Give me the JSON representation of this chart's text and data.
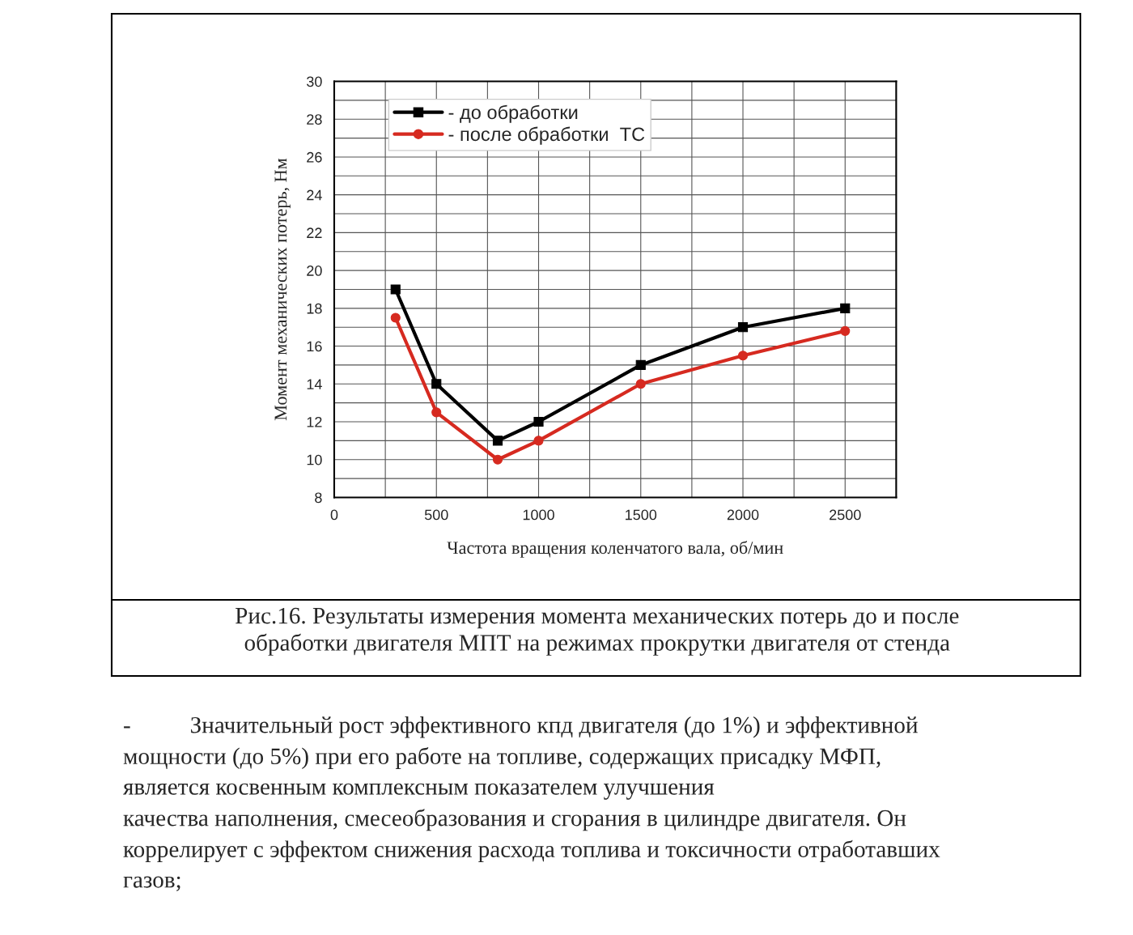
{
  "chart_data": {
    "type": "line",
    "xlabel": "Частота вращения коленчатого вала, об/мин",
    "ylabel": "Момент механических потерь, Нм",
    "x": [
      300,
      500,
      800,
      1000,
      1500,
      2000,
      2500
    ],
    "series": [
      {
        "name": "- до обработки",
        "color": "#000000",
        "marker": "square",
        "values": [
          19,
          14,
          11,
          12,
          15,
          17,
          18
        ]
      },
      {
        "name": "- после обработки  ТС",
        "color": "#d62a20",
        "marker": "circle",
        "values": [
          17.5,
          12.5,
          10,
          11,
          14,
          15.5,
          16.8
        ]
      }
    ],
    "xlim": [
      0,
      2750
    ],
    "xticks": [
      0,
      500,
      1000,
      1500,
      2000,
      2500
    ],
    "ylim": [
      8,
      30
    ],
    "yticks": [
      8,
      10,
      12,
      14,
      16,
      18,
      20,
      22,
      24,
      26,
      28,
      30
    ],
    "grid": true,
    "legend": "top left",
    "line_style": "solid",
    "annotations": [
      "Рис.16. Результаты измерения момента механических потерь до и после\nобработки двигателя МПТ на режимах прокрутки двигателя от стенда",
      "-          Значительный рост эффективного кпд двигателя (до 1%) и эффективной\nмощности (до 5%) при его работе на топливе, содержащих присадку МФП,\nявляется косвенным комплексным показателем улучшения\nкачества наполнения, смесеобразования и сгорания в цилиндре двигателя. Он\nкоррелирует с эффектом снижения расхода топлива и токсичности отработавших\nгазов;"
    ]
  }
}
